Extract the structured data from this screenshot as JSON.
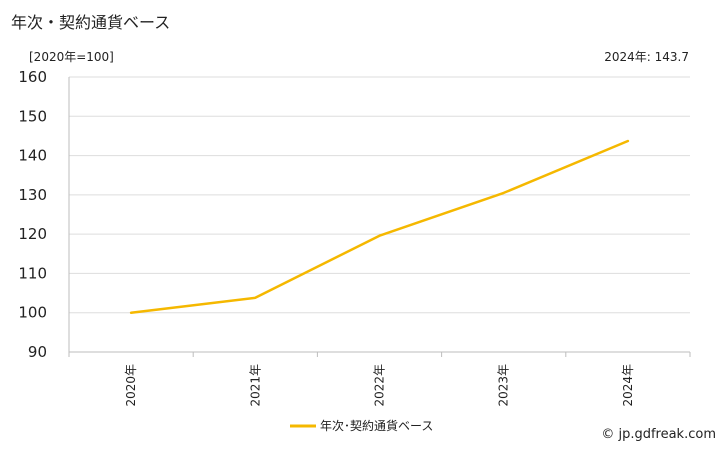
{
  "chart_data": {
    "type": "line",
    "title": "年次・契約通貨ベース",
    "unit_label": "[2020年=100]",
    "latest_label": "2024年: 143.7",
    "x": [
      "2020年",
      "2021年",
      "2022年",
      "2023年",
      "2024年"
    ],
    "series": [
      {
        "name": "年次･契約通貨ベース",
        "values": [
          100.0,
          103.8,
          119.6,
          130.5,
          143.7
        ],
        "color": "#f5b800"
      }
    ],
    "yticks": [
      90,
      100,
      110,
      120,
      130,
      140,
      150,
      160
    ],
    "ylim": [
      90,
      160
    ],
    "grid": true,
    "legend_position": "bottom"
  },
  "credit": "© jp.gdfreak.com"
}
